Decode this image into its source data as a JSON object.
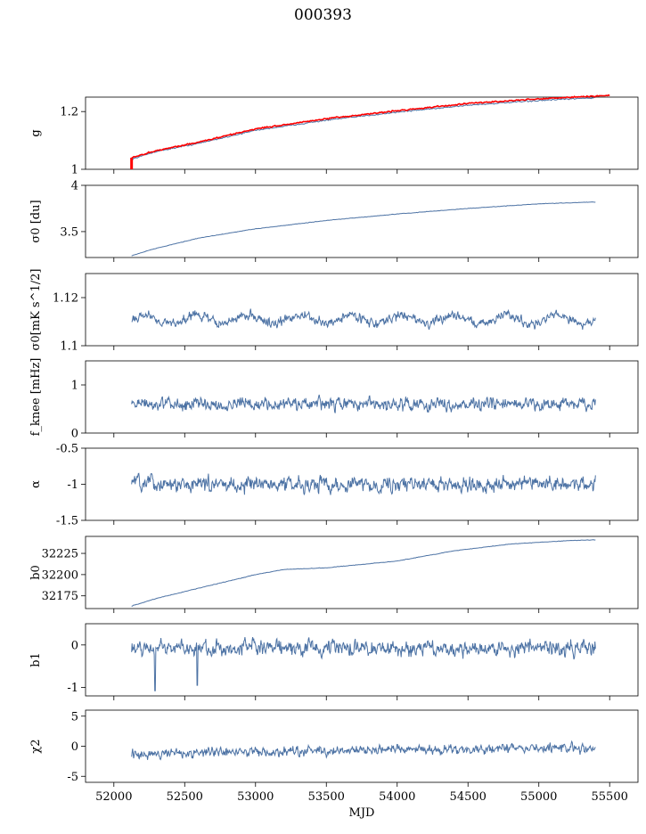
{
  "figure": {
    "title": "000393"
  },
  "chart_data": {
    "type": "line",
    "x_shared": {
      "label": "MJD",
      "ticks": [
        52000,
        52500,
        53000,
        53500,
        54000,
        54500,
        55000,
        55500
      ],
      "xlim": [
        51800,
        55700
      ]
    },
    "panels": [
      {
        "id": "g",
        "ylabel": "g",
        "ylim": [
          1.0,
          1.25
        ],
        "yticks": [
          1.0,
          1.2
        ],
        "series": [
          {
            "color": "#4c72a4",
            "style": "trend",
            "shape": "log",
            "noise": 0.002,
            "min": 0.0,
            "x": [
              52125,
              52300,
              52600,
              53000,
              53500,
              54000,
              54500,
              55000,
              55400
            ],
            "y": [
              1.035,
              1.062,
              1.09,
              1.135,
              1.17,
              1.198,
              1.222,
              1.238,
              1.248
            ]
          },
          {
            "color": "#ff0000",
            "style": "trend",
            "shape": "log",
            "noise": 0.002,
            "min": 0.0,
            "x": [
              52125,
              52300,
              52600,
              53000,
              53500,
              54000,
              54500,
              55000,
              55500
            ],
            "y": [
              1.04,
              1.065,
              1.094,
              1.14,
              1.175,
              1.203,
              1.228,
              1.244,
              1.256
            ]
          }
        ]
      },
      {
        "id": "sigma0_du",
        "ylabel": "σ0 [du]",
        "ylim": [
          3.22,
          4.0
        ],
        "yticks": [
          3.5,
          4.0
        ],
        "series": [
          {
            "color": "#4c72a4",
            "style": "trend",
            "x": [
              52125,
              52300,
              52600,
              53000,
              53500,
              54000,
              54500,
              55000,
              55400
            ],
            "y": [
              3.24,
              3.32,
              3.43,
              3.53,
              3.62,
              3.69,
              3.75,
              3.8,
              3.82
            ]
          }
        ]
      },
      {
        "id": "sigma0_mk",
        "ylabel": "σ0[mK s^1/2]",
        "ylim": [
          1.1,
          1.13
        ],
        "yticks": [
          1.1,
          1.12
        ],
        "series": [
          {
            "color": "#4c72a4",
            "style": "noise",
            "mean": 1.111,
            "amp": 0.0015,
            "seasonal": 0.0018,
            "x": [
              52125,
              55400
            ]
          }
        ]
      },
      {
        "id": "fknee",
        "ylabel": "f_knee [mHz]",
        "ylim": [
          0.0,
          1.5
        ],
        "yticks": [
          0,
          1
        ],
        "series": [
          {
            "color": "#4c72a4",
            "style": "noise",
            "mean": 0.6,
            "amp": 0.1,
            "seasonal": 0.0,
            "x": [
              52125,
              55400
            ]
          }
        ]
      },
      {
        "id": "alpha",
        "ylabel": "α",
        "ylim": [
          -1.5,
          -0.5
        ],
        "yticks": [
          -1.5,
          -1.0,
          -0.5
        ],
        "series": [
          {
            "color": "#4c72a4",
            "style": "noise",
            "mean": -1.0,
            "amp": 0.08,
            "seasonal": 0.0,
            "x": [
              52125,
              55400
            ]
          }
        ]
      },
      {
        "id": "b0",
        "ylabel": "b0",
        "ylim": [
          32160,
          32245
        ],
        "yticks": [
          32175,
          32200,
          32225
        ],
        "series": [
          {
            "color": "#4c72a4",
            "style": "trend",
            "x": [
              52125,
              52300,
              52500,
              52800,
              53000,
              53200,
              53500,
              54000,
              54400,
              54800,
              55200,
              55400
            ],
            "y": [
              32163,
              32172,
              32180,
              32192,
              32200,
              32206,
              32208,
              32216,
              32228,
              32236,
              32240,
              32241
            ]
          }
        ]
      },
      {
        "id": "b1",
        "ylabel": "b1",
        "ylim": [
          -1.2,
          0.5
        ],
        "yticks": [
          -1,
          0
        ],
        "series": [
          {
            "color": "#4c72a4",
            "style": "noise",
            "mean": -0.08,
            "amp": 0.14,
            "seasonal": 0.0,
            "x": [
              52125,
              55400
            ],
            "spikes": [
              {
                "x": 52290,
                "y": -1.08
              },
              {
                "x": 52590,
                "y": -0.95
              }
            ]
          }
        ]
      },
      {
        "id": "chi2",
        "ylabel": "χ2",
        "ylim": [
          -6,
          6
        ],
        "yticks": [
          -5,
          0,
          5
        ],
        "series": [
          {
            "color": "#4c72a4",
            "style": "noise",
            "mean": -1.2,
            "amp": 0.6,
            "seasonal": 0.0,
            "drift": 1.0,
            "x": [
              52125,
              55400
            ]
          }
        ]
      }
    ]
  }
}
